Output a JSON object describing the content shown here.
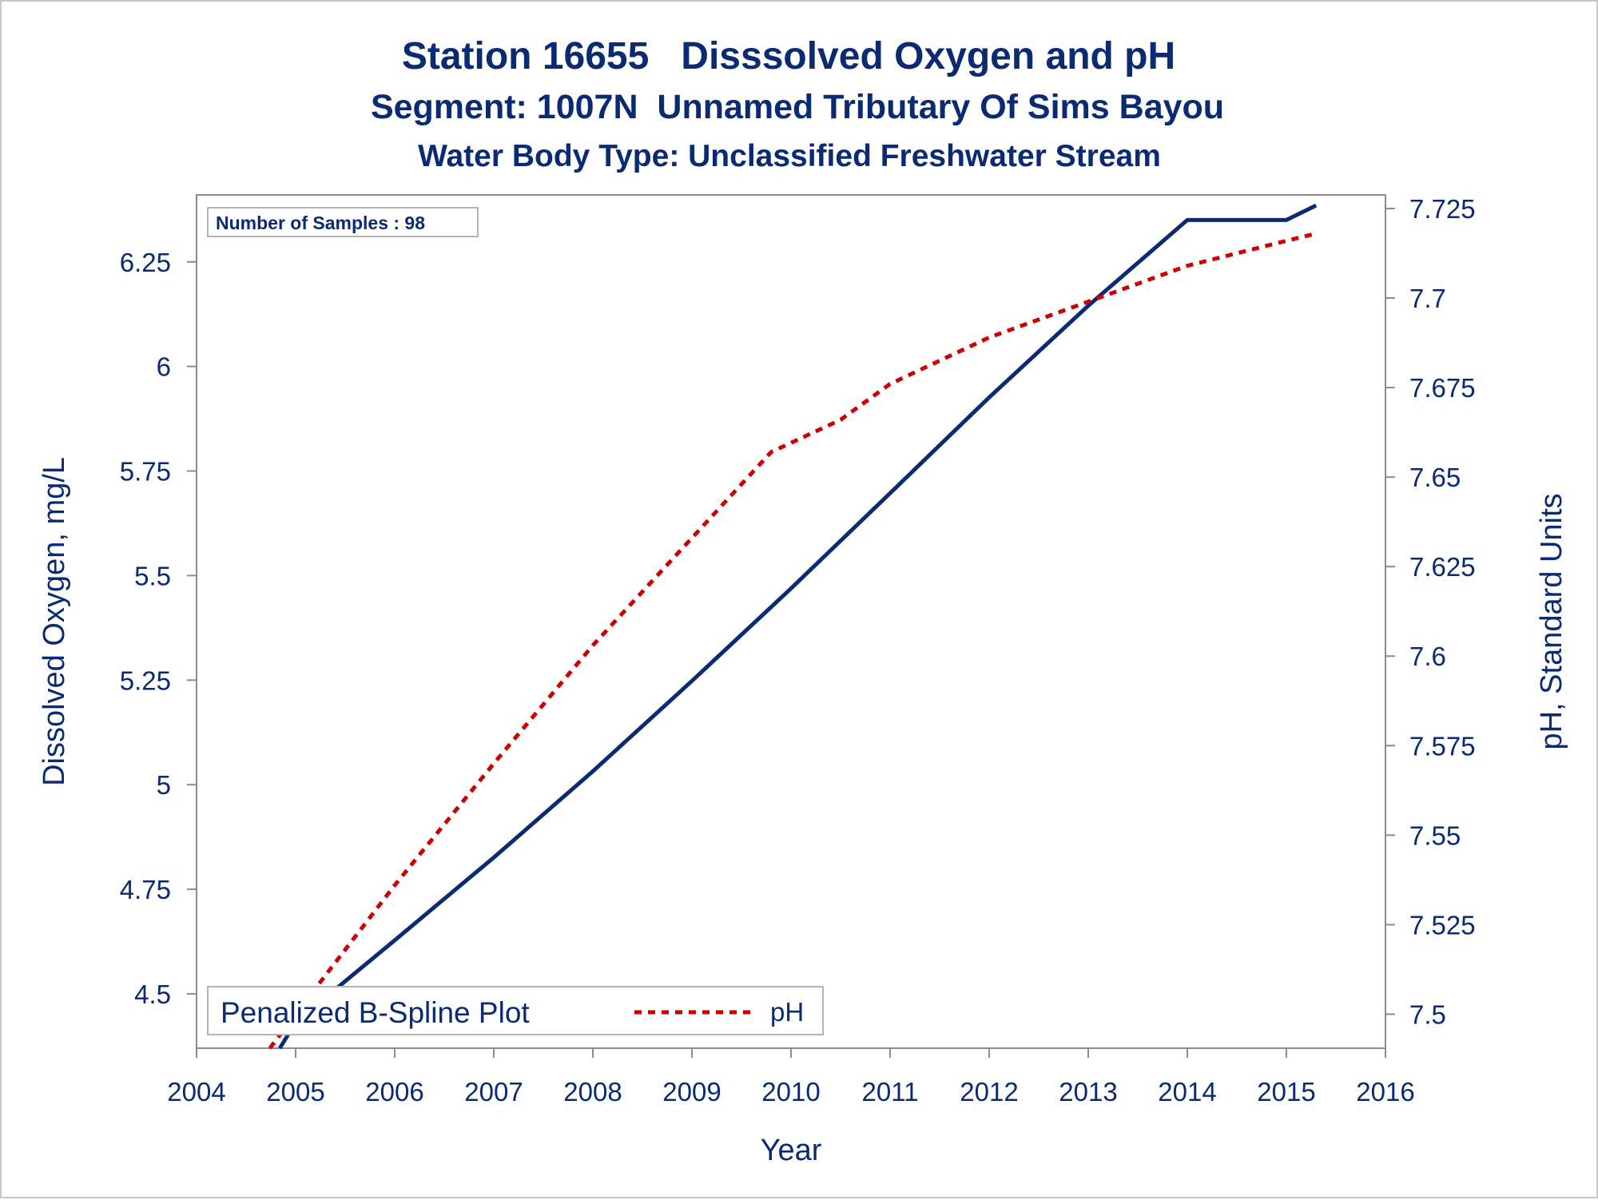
{
  "chart_data": {
    "type": "line",
    "title": "Station 16655   Disssolved Oxygen and pH",
    "subtitle": "Segment: 1007N  Unnamed Tributary Of Sims Bayou",
    "subtitle2": "Water Body Type: Unclassified Freshwater Stream",
    "xlabel": "Year",
    "ylabel_left": "Dissolved Oxygen, mg/L",
    "ylabel_right": "pH, Standard Units",
    "xlim": [
      2004,
      2016
    ],
    "ylim_left": [
      4.37,
      6.41
    ],
    "ylim_right": [
      7.4905,
      7.7288
    ],
    "x_ticks": [
      "2004",
      "2005",
      "2006",
      "2007",
      "2008",
      "2009",
      "2010",
      "2011",
      "2012",
      "2013",
      "2014",
      "2015",
      "2016"
    ],
    "y_left_ticks": [
      "4.5",
      "4.75",
      "5",
      "5.25",
      "5.5",
      "5.75",
      "6",
      "6.25"
    ],
    "y_right_ticks": [
      "7.5",
      "7.525",
      "7.55",
      "7.575",
      "7.6",
      "7.625",
      "7.65",
      "7.675",
      "7.7",
      "7.725"
    ],
    "inset_text": "Number of Samples : 98",
    "legend_title": "Penalized B-Spline Plot",
    "legend_position": "bottom-left",
    "grid": false,
    "series": [
      {
        "axis": "left",
        "color": "#0b2a74",
        "style": "solid",
        "x": [
          2004.84,
          2005.0,
          2006.0,
          2007.0,
          2008.0,
          2009.0,
          2010.0,
          2011.0,
          2012.0,
          2013.0,
          2014.0,
          2015.0,
          2015.3
        ],
        "values": [
          4.37,
          4.432,
          4.628,
          4.826,
          5.032,
          5.248,
          5.469,
          5.697,
          5.926,
          6.145,
          6.35,
          6.35,
          6.385
        ]
      },
      {
        "name": "pH",
        "axis": "right",
        "color": "#cc0000",
        "style": "dotted",
        "x": [
          2004.74,
          2005.0,
          2006.0,
          2007.0,
          2008.0,
          2009.0,
          2009.8,
          2010.5,
          2011.0,
          2012.0,
          2013.0,
          2014.0,
          2015.0,
          2015.3
        ],
        "values": [
          7.4905,
          7.5,
          7.536,
          7.57,
          7.603,
          7.633,
          7.657,
          7.666,
          7.676,
          7.689,
          7.699,
          7.709,
          7.716,
          7.718
        ]
      }
    ]
  }
}
